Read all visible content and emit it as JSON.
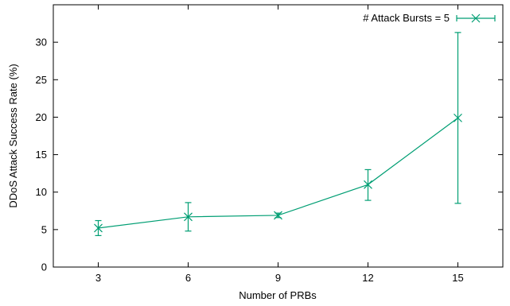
{
  "chart_data": {
    "type": "line",
    "title": "",
    "xlabel": "Number of PRBs",
    "ylabel": "DDoS Attack Success Rate (%)",
    "xlim": [
      1.5,
      16.5
    ],
    "ylim": [
      0,
      35
    ],
    "xticks": [
      3,
      6,
      9,
      12,
      15
    ],
    "yticks": [
      0,
      5,
      10,
      15,
      20,
      25,
      30
    ],
    "grid": false,
    "legend_position": "top-right",
    "series": [
      {
        "name": "# Attack Bursts = 5",
        "color": "#009e73",
        "marker": "x",
        "x": [
          3,
          6,
          9,
          12,
          15
        ],
        "y": [
          5.2,
          6.7,
          6.9,
          11.0,
          19.9
        ],
        "y_err_low": [
          4.2,
          4.8,
          6.6,
          8.9,
          8.5
        ],
        "y_err_high": [
          6.2,
          8.6,
          7.2,
          13.0,
          31.3
        ]
      }
    ]
  }
}
